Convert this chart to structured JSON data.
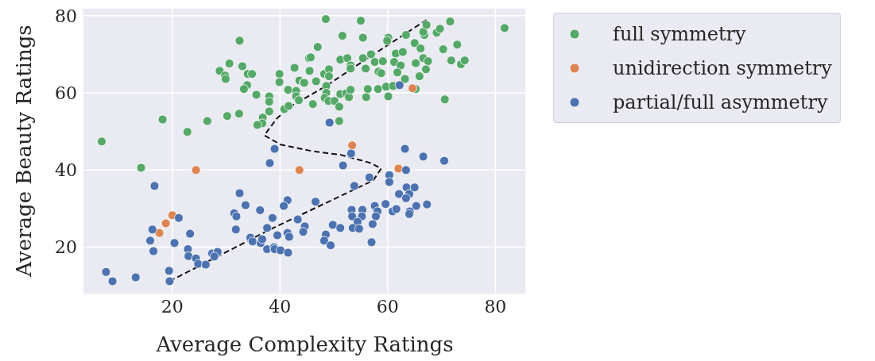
{
  "chart_data": {
    "type": "scatter",
    "xlabel": "Average Complexity Ratings",
    "ylabel": "Average Beauty Ratings",
    "xlim": [
      3.5,
      85.7
    ],
    "xticks": [
      20,
      40,
      60,
      80
    ],
    "ylim": [
      8,
      82
    ],
    "yticks": [
      20,
      40,
      60,
      80
    ],
    "grid": true,
    "legend": "top right",
    "marker": "circle",
    "series": [
      {
        "name": "full symmetry",
        "color": "#55a868",
        "x": [
          32.5,
          30.6,
          33.0,
          28.8,
          29.8,
          29.9,
          34.0,
          34.8,
          39.9,
          42.7,
          39.9,
          33.9,
          33.3,
          43.6,
          44.4,
          35.6,
          38.0,
          38.0,
          41.5,
          43.0,
          43.0,
          43.5,
          38.0,
          40.8,
          41.6,
          36.8,
          36.7,
          35.8,
          32.4,
          30.2,
          26.5,
          22.8,
          18.2,
          6.9,
          45.4,
          45.4,
          14.2,
          48.5,
          55.0,
          51.6,
          55.4,
          47.0,
          45.7,
          45.5,
          44.5,
          46.7,
          48.2,
          49.1,
          49.1,
          51.2,
          52.5,
          53.1,
          53.1,
          55.9,
          55.4,
          56.9,
          57.6,
          59.1,
          58.3,
          58.8,
          60.1,
          59.9,
          63.4,
          61.5,
          62.8,
          61.2,
          62.4,
          61.8,
          63.2,
          65.0,
          66.1,
          65.2,
          66.6,
          67.5,
          67.1,
          65.9,
          66.8,
          66.6,
          67.2,
          69.1,
          69.7,
          71.6,
          70.3,
          72.9,
          71.8,
          73.6,
          74.3,
          81.7,
          48.6,
          48.6,
          48.3,
          49.0,
          50.1,
          51.0,
          46.1,
          51.2,
          52.3,
          52.8,
          53.1,
          56.0,
          56.3,
          58.2,
          59.7,
          60.1,
          61.0,
          65.2,
          70.6,
          51.0
        ],
        "values": [
          73.5,
          67.6,
          66.9,
          65.7,
          64.5,
          63.6,
          64.9,
          64.9,
          64.9,
          66.5,
          62.8,
          62.0,
          61.0,
          63.2,
          62.6,
          59.5,
          59.1,
          57.7,
          60.8,
          60.5,
          59.1,
          58.1,
          55.2,
          55.8,
          56.6,
          53.6,
          52.1,
          51.7,
          54.6,
          54.0,
          52.7,
          49.9,
          53.1,
          47.4,
          69.0,
          65.7,
          40.6,
          79.1,
          78.7,
          74.8,
          74.3,
          71.9,
          69.2,
          65.7,
          62.6,
          63.0,
          64.9,
          66.1,
          64.3,
          68.6,
          69.0,
          67.1,
          66.3,
          66.3,
          69.0,
          70.0,
          68.0,
          68.2,
          65.5,
          65.1,
          74.3,
          73.5,
          75.0,
          70.2,
          70.6,
          68.0,
          67.1,
          65.3,
          63.6,
          72.9,
          71.5,
          67.7,
          69.0,
          68.2,
          66.1,
          64.3,
          75.0,
          75.8,
          77.6,
          75.6,
          76.6,
          78.5,
          71.3,
          72.5,
          68.4,
          67.4,
          68.4,
          76.8,
          61.8,
          60.0,
          58.7,
          57.9,
          57.9,
          56.4,
          57.1,
          59.7,
          59.9,
          58.9,
          60.8,
          58.9,
          61.0,
          61.0,
          61.6,
          59.1,
          61.8,
          61.0,
          58.3,
          52.7
        ]
      },
      {
        "name": "unidirection symmetry",
        "color": "#dd8452",
        "x": [
          64.6,
          53.4,
          24.4,
          43.6,
          20.0,
          18.8,
          17.6,
          62.0
        ],
        "values": [
          61.2,
          46.4,
          40.0,
          40.0,
          28.3,
          26.2,
          23.7,
          40.4
        ]
      },
      {
        "name": "partial/full asymmetry",
        "color": "#4c72b0",
        "x": [
          62.2,
          49.2,
          39.0,
          38.1,
          16.7,
          21.2,
          16.3,
          15.9,
          16.5,
          20.4,
          23.3,
          22.9,
          23.0,
          24.4,
          24.8,
          26.2,
          27.4,
          28.4,
          27.8,
          19.4,
          19.5,
          7.7,
          8.9,
          13.2,
          32.5,
          33.6,
          31.5,
          31.9,
          36.3,
          31.8,
          38.6,
          41.4,
          40.7,
          37.6,
          39.5,
          41.4,
          41.7,
          34.5,
          34.9,
          36.4,
          36.7,
          37.6,
          38.9,
          39.0,
          40.1,
          41.5,
          43.3,
          44.6,
          44.3,
          53.2,
          51.7,
          63.2,
          66.6,
          70.5,
          63.4,
          60.3,
          60.3,
          56.6,
          53.8,
          63.5,
          65.0,
          62.1,
          64.0,
          63.4,
          46.6,
          59.6,
          57.6,
          58.1,
          57.8,
          60.9,
          61.6,
          65.3,
          67.3,
          64.1,
          64.0,
          53.3,
          55.3,
          53.4,
          55.2,
          54.4,
          57.2,
          53.5,
          54.7,
          49.8,
          51.2,
          48.5,
          48.2,
          49.4,
          57.0
        ],
        "values": [
          62.0,
          52.3,
          45.5,
          41.8,
          35.9,
          27.6,
          24.6,
          21.7,
          19.0,
          21.1,
          23.5,
          19.5,
          17.7,
          17.1,
          15.7,
          15.5,
          18.4,
          18.8,
          17.6,
          13.9,
          11.2,
          13.6,
          11.2,
          12.2,
          34.0,
          30.9,
          28.8,
          28.0,
          29.6,
          24.6,
          27.6,
          32.2,
          30.7,
          25.0,
          23.1,
          23.7,
          22.7,
          22.5,
          21.5,
          21.1,
          22.1,
          19.5,
          20.0,
          19.5,
          19.2,
          18.6,
          27.2,
          25.4,
          24.0,
          44.3,
          41.2,
          45.5,
          43.5,
          42.4,
          40.0,
          38.7,
          36.9,
          38.1,
          35.9,
          35.5,
          35.5,
          33.8,
          33.8,
          32.7,
          31.8,
          31.2,
          30.7,
          29.3,
          28.0,
          29.3,
          29.9,
          30.7,
          31.1,
          29.3,
          28.6,
          29.7,
          29.7,
          28.0,
          28.0,
          26.6,
          26.0,
          25.0,
          24.8,
          25.8,
          25.0,
          23.3,
          21.7,
          20.5,
          21.3
        ]
      },
      {
        "type": "line",
        "color": "#111111",
        "marker": "none",
        "line_style": "dashed",
        "x": [
          19.5,
          38.0,
          57.3,
          58.8,
          56.9,
          51.4,
          46.0,
          40.1,
          37.1,
          38.2,
          39.5,
          42.1,
          48.8,
          56.3,
          67.2
        ],
        "values": [
          11.2,
          24.5,
          37.3,
          40.4,
          41.8,
          43.9,
          44.9,
          46.6,
          49.0,
          51.1,
          53.5,
          56.6,
          62.0,
          69.0,
          78.9
        ]
      }
    ]
  }
}
